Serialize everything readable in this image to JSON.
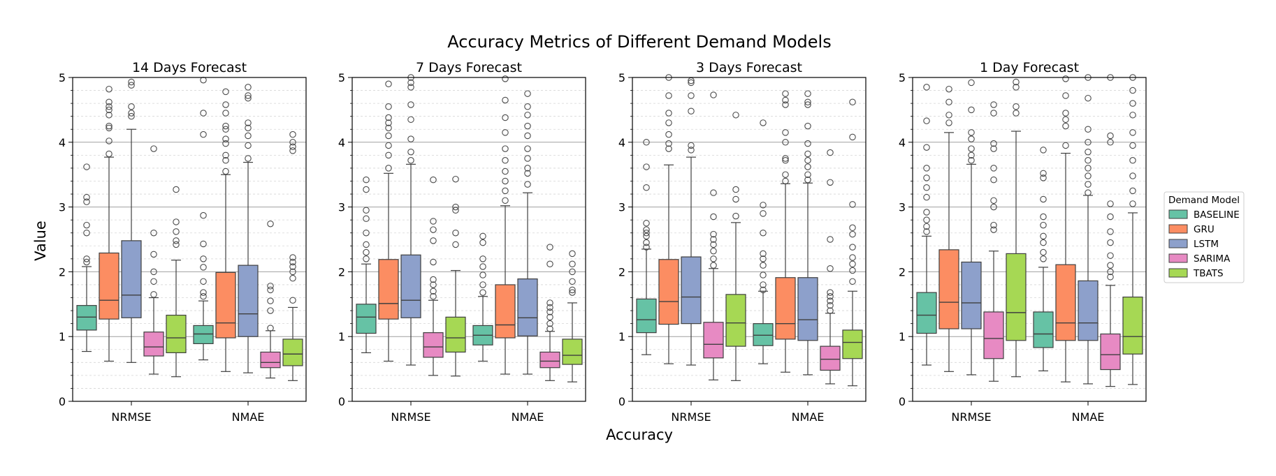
{
  "figure": {
    "suptitle": "Accuracy Metrics of Different Demand Models",
    "xlabel": "Accuracy",
    "ylabel": "Value",
    "legend_title": "Demand Model"
  },
  "colors": {
    "BASELINE": "#66c2a5",
    "GRU": "#fc8d62",
    "LSTM": "#8da0cb",
    "SARIMA": "#e78ac3",
    "TBATS": "#a6d854"
  },
  "chart_data": [
    {
      "type": "box",
      "title": "14 Days Forecast",
      "categories": [
        "NRMSE",
        "NMAE"
      ],
      "ylim": [
        0,
        5
      ],
      "yticks": [
        0,
        1,
        2,
        3,
        4,
        5
      ],
      "grid": "horizontal major and minor",
      "legend": "right",
      "series": [
        {
          "name": "BASELINE",
          "boxes": [
            {
              "whislo": 0.77,
              "q1": 1.1,
              "med": 1.3,
              "q3": 1.48,
              "whishi": 2.08,
              "fliers": [
                2.15,
                2.2,
                2.6,
                2.72,
                3.08,
                3.15,
                3.62
              ]
            },
            {
              "whislo": 0.64,
              "q1": 0.89,
              "med": 1.04,
              "q3": 1.17,
              "whishi": 1.55,
              "fliers": [
                1.62,
                1.68,
                1.85,
                2.07,
                2.2,
                2.43,
                2.87,
                4.12,
                4.45,
                4.96
              ]
            }
          ]
        },
        {
          "name": "GRU",
          "boxes": [
            {
              "whislo": 0.62,
              "q1": 1.27,
              "med": 1.56,
              "q3": 2.29,
              "whishi": 3.77,
              "fliers": [
                3.82,
                4.02,
                4.22,
                4.25,
                4.42,
                4.5,
                4.55,
                4.62,
                4.82
              ]
            },
            {
              "whislo": 0.46,
              "q1": 0.98,
              "med": 1.21,
              "q3": 1.99,
              "whishi": 3.5,
              "fliers": [
                3.55,
                3.72,
                3.8,
                3.98,
                4.05,
                4.2,
                4.25,
                4.45,
                4.58,
                4.78
              ]
            }
          ]
        },
        {
          "name": "LSTM",
          "boxes": [
            {
              "whislo": 0.6,
              "q1": 1.29,
              "med": 1.64,
              "q3": 2.48,
              "whishi": 4.2,
              "fliers": [
                4.4,
                4.45,
                4.55,
                4.88,
                4.93
              ]
            },
            {
              "whislo": 0.44,
              "q1": 1.0,
              "med": 1.35,
              "q3": 2.1,
              "whishi": 3.69,
              "fliers": [
                3.75,
                3.95,
                4.1,
                4.22,
                4.3,
                4.68,
                4.72,
                4.85
              ]
            }
          ]
        },
        {
          "name": "SARIMA",
          "boxes": [
            {
              "whislo": 0.42,
              "q1": 0.7,
              "med": 0.84,
              "q3": 1.07,
              "whishi": 1.6,
              "fliers": [
                1.65,
                1.85,
                2.0,
                2.27,
                2.6,
                3.9
              ]
            },
            {
              "whislo": 0.36,
              "q1": 0.52,
              "med": 0.6,
              "q3": 0.76,
              "whishi": 1.09,
              "fliers": [
                1.13,
                1.4,
                1.55,
                1.72,
                1.78,
                2.74
              ]
            }
          ]
        },
        {
          "name": "TBATS",
          "boxes": [
            {
              "whislo": 0.38,
              "q1": 0.75,
              "med": 0.98,
              "q3": 1.33,
              "whishi": 2.18,
              "fliers": [
                2.42,
                2.48,
                2.62,
                2.77,
                3.27
              ]
            },
            {
              "whislo": 0.32,
              "q1": 0.55,
              "med": 0.73,
              "q3": 0.96,
              "whishi": 1.45,
              "fliers": [
                1.56,
                1.9,
                2.0,
                2.08,
                2.15,
                2.22,
                3.87,
                3.93,
                4.0,
                4.12
              ]
            }
          ]
        }
      ]
    },
    {
      "type": "box",
      "title": "7 Days Forecast",
      "categories": [
        "NRMSE",
        "NMAE"
      ],
      "ylim": [
        0,
        5
      ],
      "yticks": [
        0,
        1,
        2,
        3,
        4,
        5
      ],
      "series": [
        {
          "name": "BASELINE",
          "boxes": [
            {
              "whislo": 0.75,
              "q1": 1.05,
              "med": 1.3,
              "q3": 1.5,
              "whishi": 2.12,
              "fliers": [
                2.2,
                2.3,
                2.42,
                2.6,
                2.82,
                2.95,
                3.27,
                3.42
              ]
            },
            {
              "whislo": 0.62,
              "q1": 0.87,
              "med": 1.02,
              "q3": 1.17,
              "whishi": 1.62,
              "fliers": [
                1.68,
                1.8,
                1.95,
                2.08,
                2.2,
                2.45,
                2.55
              ]
            }
          ]
        },
        {
          "name": "GRU",
          "boxes": [
            {
              "whislo": 0.62,
              "q1": 1.27,
              "med": 1.51,
              "q3": 2.19,
              "whishi": 3.52,
              "fliers": [
                3.6,
                3.8,
                3.95,
                4.1,
                4.22,
                4.3,
                4.38,
                4.55,
                4.9
              ]
            },
            {
              "whislo": 0.42,
              "q1": 0.98,
              "med": 1.18,
              "q3": 1.8,
              "whishi": 3.02,
              "fliers": [
                3.1,
                3.25,
                3.4,
                3.55,
                3.72,
                3.9,
                4.15,
                4.38,
                4.65,
                4.98
              ]
            }
          ]
        },
        {
          "name": "LSTM",
          "boxes": [
            {
              "whislo": 0.56,
              "q1": 1.29,
              "med": 1.56,
              "q3": 2.26,
              "whishi": 3.66,
              "fliers": [
                3.72,
                3.85,
                4.05,
                4.35,
                4.58,
                4.85,
                4.92,
                5.0
              ]
            },
            {
              "whislo": 0.42,
              "q1": 1.01,
              "med": 1.29,
              "q3": 1.89,
              "whishi": 3.22,
              "fliers": [
                3.35,
                3.52,
                3.6,
                3.75,
                3.9,
                4.1,
                4.25,
                4.42,
                4.55,
                4.75
              ]
            }
          ]
        },
        {
          "name": "SARIMA",
          "boxes": [
            {
              "whislo": 0.4,
              "q1": 0.68,
              "med": 0.84,
              "q3": 1.06,
              "whishi": 1.56,
              "fliers": [
                1.62,
                1.7,
                1.8,
                1.88,
                2.15,
                2.48,
                2.65,
                2.78,
                3.42
              ]
            },
            {
              "whislo": 0.32,
              "q1": 0.52,
              "med": 0.62,
              "q3": 0.76,
              "whishi": 1.08,
              "fliers": [
                1.12,
                1.2,
                1.3,
                1.38,
                1.45,
                1.52,
                2.12,
                2.38
              ]
            }
          ]
        },
        {
          "name": "TBATS",
          "boxes": [
            {
              "whislo": 0.39,
              "q1": 0.76,
              "med": 0.98,
              "q3": 1.3,
              "whishi": 2.02,
              "fliers": [
                2.42,
                2.6,
                2.95,
                3.0,
                3.43
              ]
            },
            {
              "whislo": 0.3,
              "q1": 0.57,
              "med": 0.71,
              "q3": 0.96,
              "whishi": 1.52,
              "fliers": [
                1.68,
                1.72,
                1.85,
                2.0,
                2.12,
                2.28
              ]
            }
          ]
        }
      ]
    },
    {
      "type": "box",
      "title": "3 Days Forecast",
      "categories": [
        "NRMSE",
        "NMAE"
      ],
      "ylim": [
        0,
        5
      ],
      "yticks": [
        0,
        1,
        2,
        3,
        4,
        5
      ],
      "series": [
        {
          "name": "BASELINE",
          "boxes": [
            {
              "whislo": 0.72,
              "q1": 1.06,
              "med": 1.26,
              "q3": 1.58,
              "whishi": 2.35,
              "fliers": [
                2.38,
                2.45,
                2.55,
                2.6,
                2.65,
                2.75,
                3.3,
                3.62,
                4.0
              ]
            },
            {
              "whislo": 0.58,
              "q1": 0.86,
              "med": 1.02,
              "q3": 1.2,
              "whishi": 1.7,
              "fliers": [
                1.72,
                1.8,
                1.95,
                2.1,
                2.2,
                2.28,
                2.6,
                2.9,
                3.03,
                4.3
              ]
            }
          ]
        },
        {
          "name": "GRU",
          "boxes": [
            {
              "whislo": 0.58,
              "q1": 1.19,
              "med": 1.54,
              "q3": 2.19,
              "whishi": 3.65,
              "fliers": [
                3.9,
                3.98,
                4.12,
                4.3,
                4.45,
                4.72,
                5.0
              ]
            },
            {
              "whislo": 0.45,
              "q1": 0.96,
              "med": 1.2,
              "q3": 1.91,
              "whishi": 3.36,
              "fliers": [
                3.4,
                3.5,
                3.72,
                3.75,
                4.0,
                4.15,
                4.58,
                4.65,
                4.75
              ]
            }
          ]
        },
        {
          "name": "LSTM",
          "boxes": [
            {
              "whislo": 0.56,
              "q1": 1.2,
              "med": 1.61,
              "q3": 2.23,
              "whishi": 3.77,
              "fliers": [
                3.88,
                3.95,
                4.48,
                4.72,
                4.92,
                4.95
              ]
            },
            {
              "whislo": 0.41,
              "q1": 0.94,
              "med": 1.26,
              "q3": 1.91,
              "whishi": 3.37,
              "fliers": [
                3.42,
                3.5,
                3.62,
                3.72,
                3.82,
                3.98,
                4.25,
                4.58,
                4.62,
                4.75
              ]
            }
          ]
        },
        {
          "name": "SARIMA",
          "boxes": [
            {
              "whislo": 0.33,
              "q1": 0.67,
              "med": 0.88,
              "q3": 1.22,
              "whishi": 2.05,
              "fliers": [
                2.1,
                2.2,
                2.32,
                2.42,
                2.5,
                2.58,
                2.85,
                3.22,
                4.73
              ]
            },
            {
              "whislo": 0.27,
              "q1": 0.48,
              "med": 0.65,
              "q3": 0.85,
              "whishi": 1.36,
              "fliers": [
                1.4,
                1.48,
                1.55,
                1.62,
                1.68,
                2.05,
                2.5,
                3.38,
                3.84
              ]
            }
          ]
        },
        {
          "name": "TBATS",
          "boxes": [
            {
              "whislo": 0.32,
              "q1": 0.85,
              "med": 1.21,
              "q3": 1.65,
              "whishi": 2.76,
              "fliers": [
                2.86,
                3.12,
                3.27,
                4.42
              ]
            },
            {
              "whislo": 0.24,
              "q1": 0.66,
              "med": 0.91,
              "q3": 1.1,
              "whishi": 1.7,
              "fliers": [
                1.85,
                2.02,
                2.12,
                2.22,
                2.38,
                2.58,
                2.68,
                3.04,
                4.08,
                4.62
              ]
            }
          ]
        }
      ]
    },
    {
      "type": "box",
      "title": "1 Day Forecast",
      "categories": [
        "NRMSE",
        "NMAE"
      ],
      "ylim": [
        0,
        5
      ],
      "yticks": [
        0,
        1,
        2,
        3,
        4,
        5
      ],
      "series": [
        {
          "name": "BASELINE",
          "boxes": [
            {
              "whislo": 0.56,
              "q1": 1.05,
              "med": 1.33,
              "q3": 1.68,
              "whishi": 2.55,
              "fliers": [
                2.62,
                2.7,
                2.8,
                2.92,
                3.15,
                3.3,
                3.45,
                3.6,
                3.92,
                4.33,
                4.85
              ]
            },
            {
              "whislo": 0.47,
              "q1": 0.83,
              "med": 1.04,
              "q3": 1.38,
              "whishi": 2.07,
              "fliers": [
                2.2,
                2.3,
                2.45,
                2.55,
                2.72,
                2.85,
                3.12,
                3.45,
                3.52,
                3.88
              ]
            }
          ]
        },
        {
          "name": "GRU",
          "boxes": [
            {
              "whislo": 0.46,
              "q1": 1.12,
              "med": 1.53,
              "q3": 2.34,
              "whishi": 4.15,
              "fliers": [
                4.3,
                4.42,
                4.62,
                4.82
              ]
            },
            {
              "whislo": 0.3,
              "q1": 0.94,
              "med": 1.21,
              "q3": 2.11,
              "whishi": 3.83,
              "fliers": [
                3.95,
                4.25,
                4.35,
                4.45,
                4.72,
                4.98
              ]
            }
          ]
        },
        {
          "name": "LSTM",
          "boxes": [
            {
              "whislo": 0.41,
              "q1": 1.12,
              "med": 1.52,
              "q3": 2.15,
              "whishi": 3.66,
              "fliers": [
                3.72,
                3.8,
                3.9,
                4.05,
                4.15,
                4.5,
                4.92
              ]
            },
            {
              "whislo": 0.27,
              "q1": 0.94,
              "med": 1.21,
              "q3": 1.86,
              "whishi": 3.18,
              "fliers": [
                3.22,
                3.35,
                3.48,
                3.6,
                3.72,
                3.85,
                4.0,
                4.2,
                4.68,
                5.0
              ]
            }
          ]
        },
        {
          "name": "SARIMA",
          "boxes": [
            {
              "whislo": 0.31,
              "q1": 0.66,
              "med": 0.97,
              "q3": 1.38,
              "whishi": 2.32,
              "fliers": [
                2.65,
                2.72,
                3.0,
                3.1,
                3.42,
                3.6,
                3.9,
                3.98,
                4.45,
                4.58
              ]
            },
            {
              "whislo": 0.23,
              "q1": 0.49,
              "med": 0.72,
              "q3": 1.04,
              "whishi": 1.79,
              "fliers": [
                1.92,
                2.0,
                2.1,
                2.25,
                2.45,
                2.62,
                2.85,
                3.05,
                4.0,
                4.1,
                5.0
              ]
            }
          ]
        },
        {
          "name": "TBATS",
          "boxes": [
            {
              "whislo": 0.38,
              "q1": 0.94,
              "med": 1.37,
              "q3": 2.28,
              "whishi": 4.17,
              "fliers": [
                4.45,
                4.55,
                4.85,
                4.93
              ]
            },
            {
              "whislo": 0.26,
              "q1": 0.73,
              "med": 1.0,
              "q3": 1.61,
              "whishi": 2.91,
              "fliers": [
                3.05,
                3.25,
                3.48,
                3.72,
                3.95,
                4.15,
                4.42,
                4.6,
                4.8,
                5.0
              ]
            }
          ]
        }
      ]
    }
  ]
}
